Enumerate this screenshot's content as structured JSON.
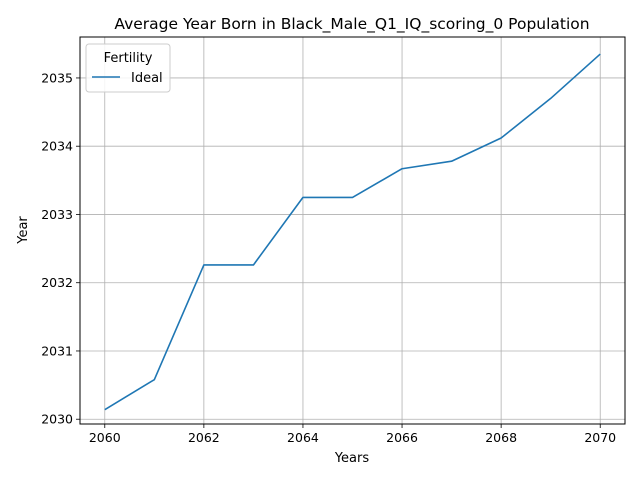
{
  "chart_data": {
    "type": "line",
    "title": "Average Year Born in Black_Male_Q1_IQ_scoring_0 Population",
    "xlabel": "Years",
    "ylabel": "Year",
    "xlim": [
      2059.5,
      2070.5
    ],
    "ylim": [
      2029.93,
      2035.6
    ],
    "x_ticks": [
      2060,
      2062,
      2064,
      2066,
      2068,
      2070
    ],
    "y_ticks": [
      2030,
      2031,
      2032,
      2033,
      2034,
      2035
    ],
    "grid": true,
    "legend": {
      "title": "Fertility",
      "placement": "top-left"
    },
    "series": [
      {
        "name": "Ideal",
        "color": "#1f77b4",
        "x": [
          2060,
          2061,
          2062,
          2063,
          2064,
          2065,
          2066,
          2067,
          2068,
          2069,
          2070
        ],
        "y": [
          2030.14,
          2030.58,
          2032.26,
          2032.26,
          2033.25,
          2033.25,
          2033.67,
          2033.78,
          2034.12,
          2034.7,
          2035.35
        ]
      }
    ]
  }
}
